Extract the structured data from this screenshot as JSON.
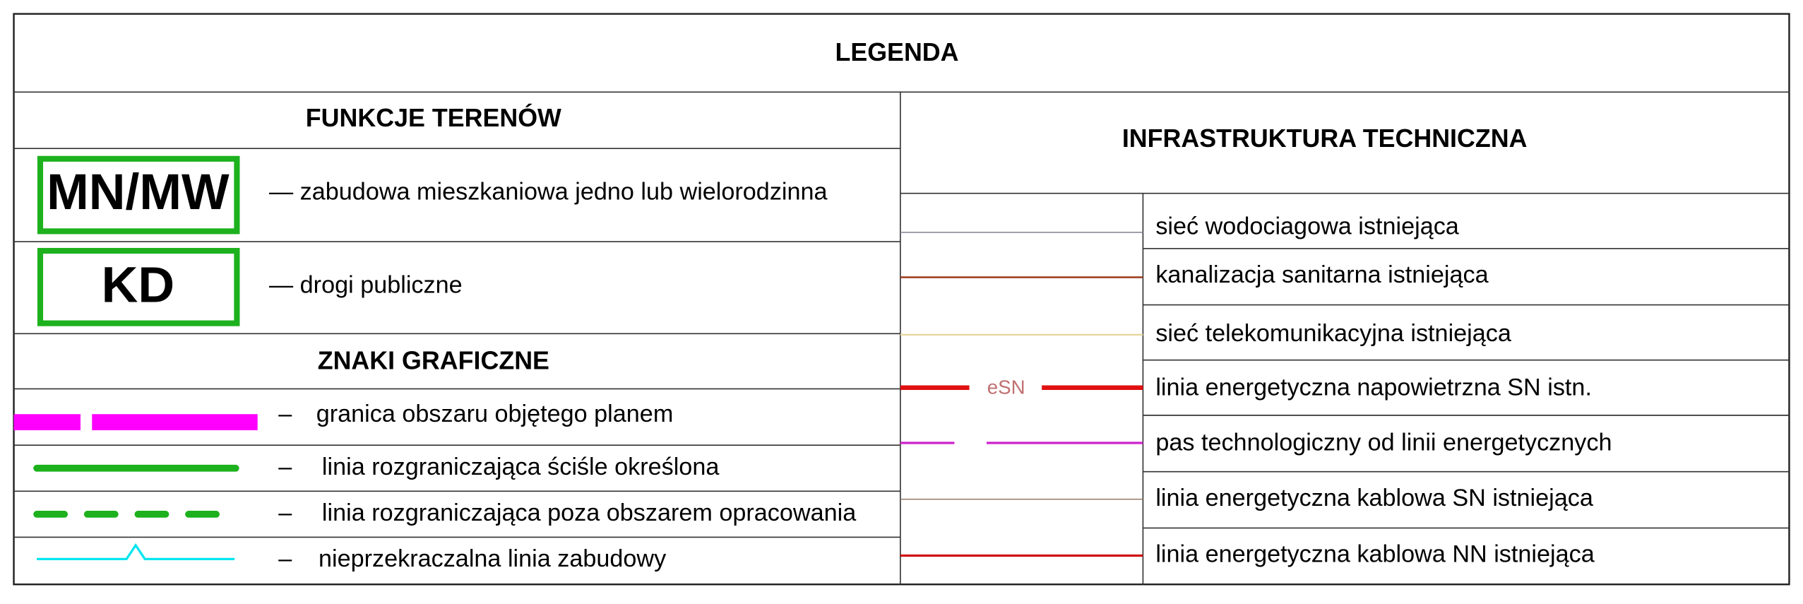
{
  "title": "LEGENDA",
  "functions": {
    "heading": "FUNKCJE TERENÓW",
    "items": [
      {
        "symbol": "MN/MW",
        "label": "— zabudowa mieszkaniowa jedno lub wielorodzinna"
      },
      {
        "symbol": "KD",
        "label": "— drogi publiczne"
      }
    ]
  },
  "graphic_signs": {
    "heading": "ZNAKI GRAFICZNE",
    "items": [
      {
        "dash": "–",
        "label": "granica obszaru objętego planem"
      },
      {
        "dash": "–",
        "label": "linia rozgraniczająca ściśle określona"
      },
      {
        "dash": "–",
        "label": "linia rozgraniczająca poza obszarem opracowania"
      },
      {
        "dash": "–",
        "label": "nieprzekraczalna linia zabudowy"
      }
    ]
  },
  "infrastructure": {
    "heading": "INFRASTRUKTURA TECHNICZNA",
    "line_label": "eSN",
    "items": [
      {
        "label": "sieć wodociagowa istniejąca"
      },
      {
        "label": "kanalizacja sanitarna istniejąca"
      },
      {
        "label": "sieć telekomunikacyjna istniejąca"
      },
      {
        "label": "linia energetyczna napowietrzna SN istn."
      },
      {
        "label": "pas technologiczny od linii energetycznych"
      },
      {
        "label": "linia energetyczna kablowa SN istniejąca"
      },
      {
        "label": "linia energetyczna kablowa NN istniejąca"
      }
    ]
  }
}
